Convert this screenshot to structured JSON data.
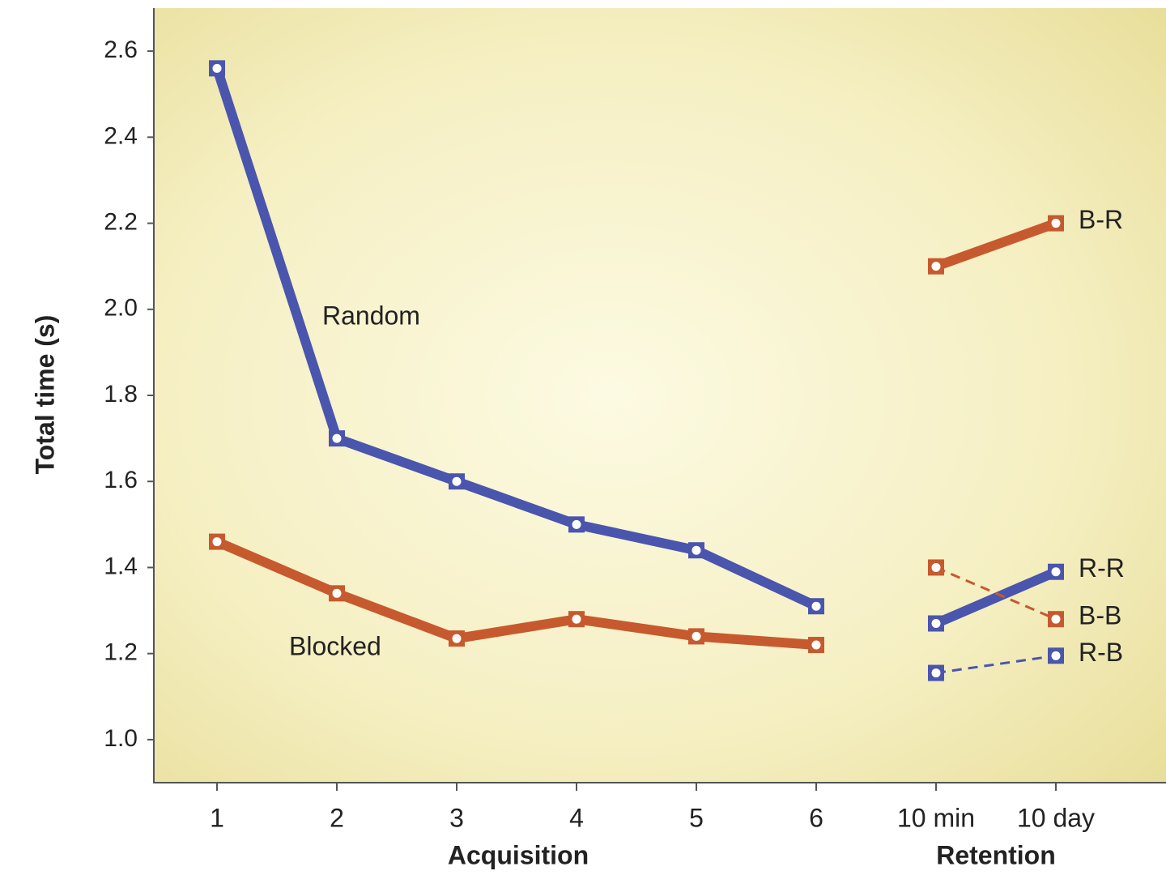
{
  "chart_data": {
    "type": "line",
    "ylabel": "Total time (s)",
    "x_groups": [
      "Acquisition",
      "Retention"
    ],
    "categories": [
      "1",
      "2",
      "3",
      "4",
      "5",
      "6",
      "10 min",
      "10 day"
    ],
    "ylim": [
      0.9,
      2.7
    ],
    "yticks": [
      {
        "value": 1.0,
        "label": "1.0"
      },
      1.2,
      1.4,
      1.6,
      1.8,
      {
        "value": 2.0,
        "label": "2.0"
      },
      2.2,
      2.4,
      2.6
    ],
    "series": [
      {
        "name": "Random",
        "color": "#4a55ad",
        "dashed": false,
        "values": [
          2.56,
          1.7,
          1.6,
          1.5,
          1.44,
          1.31,
          null,
          null
        ]
      },
      {
        "name": "Blocked",
        "color": "#c65a2e",
        "dashed": false,
        "values": [
          1.46,
          1.34,
          1.235,
          1.28,
          1.24,
          1.22,
          null,
          null
        ]
      },
      {
        "name": "B-R",
        "color": "#c65a2e",
        "dashed": false,
        "values": [
          null,
          null,
          null,
          null,
          null,
          null,
          2.1,
          2.2
        ]
      },
      {
        "name": "R-R",
        "color": "#4a55ad",
        "dashed": false,
        "values": [
          null,
          null,
          null,
          null,
          null,
          null,
          1.27,
          1.39
        ]
      },
      {
        "name": "B-B",
        "color": "#c65a2e",
        "dashed": true,
        "values": [
          null,
          null,
          null,
          null,
          null,
          null,
          1.4,
          1.28
        ]
      },
      {
        "name": "R-B",
        "color": "#4a55ad",
        "dashed": true,
        "values": [
          null,
          null,
          null,
          null,
          null,
          null,
          1.155,
          1.195
        ]
      }
    ]
  }
}
